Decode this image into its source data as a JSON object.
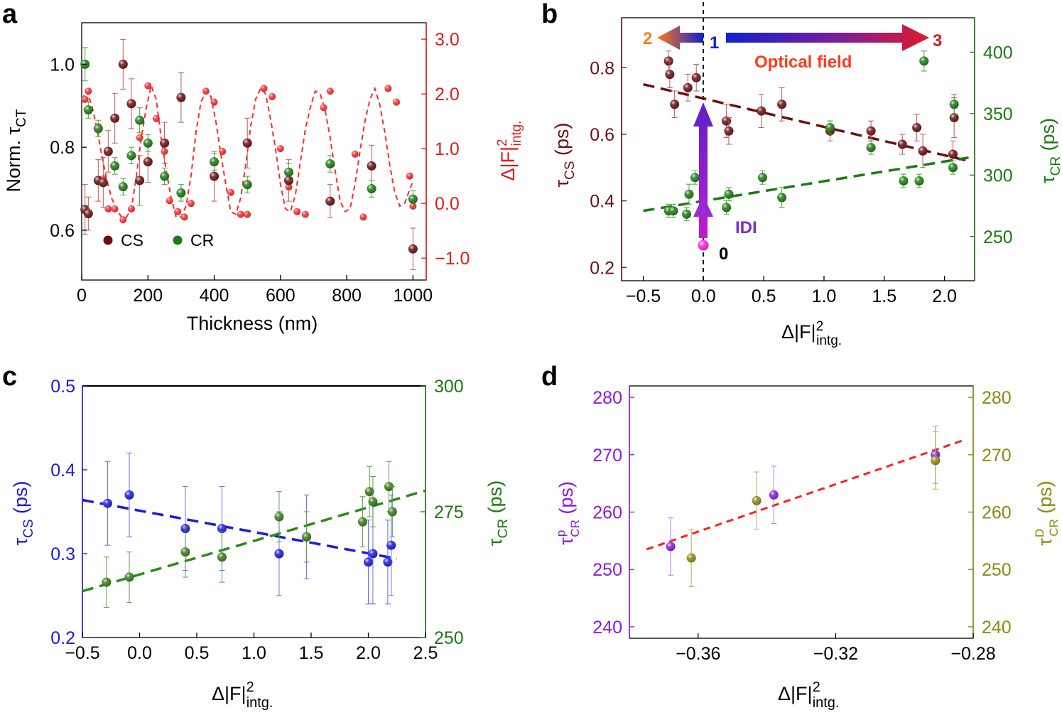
{
  "figure": {
    "panels": [
      {
        "id": "a",
        "letter": "a"
      },
      {
        "id": "b",
        "letter": "b"
      },
      {
        "id": "c",
        "letter": "c"
      },
      {
        "id": "d",
        "letter": "d"
      }
    ]
  },
  "chart_data": [
    {
      "panel": "a",
      "type": "scatter",
      "xlabel": "Thickness (nm)",
      "ylabel_left": "Norm. τ",
      "ylabel_left_sub": "CT",
      "ylabel_right": "Δ|F|",
      "ylabel_right_sup": "2",
      "ylabel_right_sub": "intg.",
      "xlim": [
        0,
        1040
      ],
      "ylim_left": [
        0.48,
        1.1
      ],
      "ylim_right": [
        -1.4,
        3.3
      ],
      "xticks": [
        0,
        200,
        400,
        600,
        800,
        1000
      ],
      "xtick_labels": [
        "0",
        "200",
        "400",
        "600",
        "800",
        "1000"
      ],
      "yticks_left": [
        0.6,
        0.8,
        1.0
      ],
      "ytick_labels_left": [
        "0.6",
        "0.8",
        "1.0"
      ],
      "yticks_right": [
        -1.0,
        0.0,
        1.0,
        2.0,
        3.0
      ],
      "ytick_labels_right": [
        "−1.0",
        "0.0",
        "1.0",
        "2.0",
        "3.0"
      ],
      "legend": [
        {
          "label": "CS",
          "color": "#6b0f0f"
        },
        {
          "label": "CR",
          "color": "#1c7a12"
        }
      ],
      "colors": {
        "cs": "#6b0f0f",
        "cr": "#1c7a12",
        "field": "#ff2a2a",
        "right_axis": "#e31a1a"
      },
      "series": [
        {
          "name": "CS",
          "axis": "left",
          "x": [
            10,
            20,
            50,
            65,
            80,
            100,
            125,
            150,
            175,
            200,
            250,
            300,
            400,
            500,
            625,
            750,
            875,
            1000
          ],
          "y": [
            0.65,
            0.64,
            0.72,
            0.715,
            0.79,
            0.87,
            1.0,
            0.905,
            0.72,
            0.765,
            0.81,
            0.92,
            0.73,
            0.81,
            0.72,
            0.67,
            0.755,
            0.555
          ],
          "err": [
            0.06,
            0.04,
            0.05,
            0.06,
            0.05,
            0.06,
            0.06,
            0.06,
            0.06,
            0.05,
            0.05,
            0.06,
            0.06,
            0.06,
            0.05,
            0.04,
            0.05,
            0.05
          ]
        },
        {
          "name": "CR",
          "axis": "left",
          "x": [
            10,
            20,
            50,
            100,
            125,
            150,
            175,
            200,
            250,
            300,
            400,
            500,
            625,
            750,
            875,
            1000
          ],
          "y": [
            1.0,
            0.89,
            0.845,
            0.755,
            0.705,
            0.78,
            0.865,
            0.81,
            0.73,
            0.69,
            0.765,
            0.71,
            0.74,
            0.76,
            0.7,
            0.675
          ],
          "err": [
            0.04,
            0.02,
            0.02,
            0.02,
            0.02,
            0.02,
            0.03,
            0.02,
            0.02,
            0.02,
            0.02,
            0.02,
            0.02,
            0.02,
            0.02,
            0.02
          ]
        },
        {
          "name": "field",
          "axis": "right",
          "style": "dashed",
          "x": [
            0,
            15,
            30,
            45,
            60,
            75,
            90,
            105,
            120,
            135,
            150,
            165,
            180,
            195,
            210,
            225,
            240,
            255,
            270,
            285,
            300,
            315,
            330,
            345,
            360,
            375,
            390,
            405,
            420,
            435,
            450,
            465,
            480,
            495,
            510,
            525,
            540,
            555,
            570,
            585,
            600,
            615,
            630,
            645,
            660,
            675,
            690,
            705,
            720,
            735,
            750,
            765,
            780,
            795,
            810,
            825,
            840,
            855,
            870,
            885,
            900,
            915,
            930,
            945,
            960,
            975,
            990,
            1000
          ],
          "y": [
            1.9,
            2.05,
            1.8,
            1.4,
            0.9,
            0.45,
            0.1,
            -0.1,
            -0.25,
            -0.25,
            -0.1,
            0.5,
            1.2,
            1.75,
            2.15,
            1.9,
            1.2,
            0.6,
            0.1,
            -0.25,
            -0.25,
            -0.05,
            0.5,
            1.3,
            1.85,
            2.05,
            1.95,
            1.5,
            0.9,
            0.35,
            -0.15,
            -0.2,
            0.1,
            0.7,
            1.4,
            1.9,
            2.1,
            2.0,
            1.55,
            1.0,
            0.35,
            -0.1,
            -0.15,
            0.15,
            0.75,
            1.35,
            1.75,
            2.05,
            2.0,
            1.7,
            1.2,
            0.6,
            0.05,
            -0.15,
            -0.1,
            0.35,
            0.95,
            1.5,
            1.9,
            2.1,
            1.8,
            1.3,
            0.7,
            0.2,
            -0.05,
            0.0,
            0.25,
            0.4
          ]
        },
        {
          "name": "field-points",
          "axis": "right",
          "x": [
            10,
            20,
            50,
            65,
            80,
            100,
            125,
            150,
            175,
            200,
            225,
            250,
            265,
            290,
            310,
            330,
            375,
            400,
            425,
            450,
            480,
            500,
            550,
            575,
            600,
            625,
            650,
            675,
            730,
            750,
            825,
            850,
            925,
            950,
            990,
            1000
          ],
          "y": [
            1.9,
            2.05,
            1.4,
            0.45,
            -0.1,
            -0.1,
            -0.3,
            -0.1,
            1.2,
            2.15,
            1.55,
            0.95,
            0.05,
            -0.15,
            -0.25,
            0.0,
            2.05,
            1.85,
            0.95,
            0.2,
            -0.2,
            -0.2,
            2.1,
            1.95,
            1.0,
            0.3,
            -0.15,
            -0.2,
            1.75,
            2.05,
            0.9,
            -0.25,
            2.1,
            1.85,
            0.5,
            -0.05
          ]
        }
      ]
    },
    {
      "panel": "b",
      "type": "scatter",
      "xlabel": "Δ|F|",
      "xlabel_sup": "2",
      "xlabel_sub": "intg.",
      "ylabel_left": "τ",
      "ylabel_left_sub": "CS",
      "ylabel_left_unit": " (ps)",
      "ylabel_right": "τ",
      "ylabel_right_sub": "CR",
      "ylabel_right_unit": " (ps)",
      "xlim": [
        -0.68,
        2.25
      ],
      "ylim_left": [
        0.16,
        0.95
      ],
      "ylim_right": [
        214,
        428
      ],
      "xticks": [
        -0.5,
        0.0,
        0.5,
        1.0,
        1.5,
        2.0
      ],
      "xtick_labels": [
        "−0.5",
        "0.0",
        "0.5",
        "1.0",
        "1.5",
        "2.0"
      ],
      "yticks_left": [
        0.2,
        0.4,
        0.6,
        0.8
      ],
      "ytick_labels_left": [
        "0.2",
        "0.4",
        "0.6",
        "0.8"
      ],
      "yticks_right": [
        250,
        300,
        350,
        400
      ],
      "ytick_labels_right": [
        "250",
        "300",
        "350",
        "400"
      ],
      "colors": {
        "cs": "#6b0f0f",
        "cr": "#1c7a12",
        "left_axis": "#6b0f0f",
        "right_axis": "#1c7a12"
      },
      "series": [
        {
          "name": "CS",
          "axis": "left",
          "x": [
            -0.29,
            -0.28,
            -0.24,
            -0.13,
            -0.06,
            0.19,
            0.21,
            0.48,
            0.65,
            1.05,
            1.39,
            1.65,
            1.77,
            1.82,
            2.07,
            2.08
          ],
          "y": [
            0.82,
            0.78,
            0.69,
            0.74,
            0.77,
            0.64,
            0.61,
            0.67,
            0.69,
            0.61,
            0.61,
            0.57,
            0.62,
            0.55,
            0.54,
            0.65
          ],
          "err": [
            0.03,
            0.04,
            0.04,
            0.04,
            0.04,
            0.05,
            0.04,
            0.05,
            0.05,
            0.03,
            0.03,
            0.03,
            0.04,
            0.05,
            0.04,
            0.06
          ]
        },
        {
          "name": "CR",
          "axis": "left-equivalent",
          "x": [
            -0.29,
            -0.25,
            -0.14,
            -0.12,
            -0.07,
            0.19,
            0.21,
            0.49,
            0.65,
            1.05,
            1.39,
            1.66,
            1.79,
            1.83,
            2.07,
            2.08
          ],
          "y": [
            0.37,
            0.37,
            0.36,
            0.42,
            0.47,
            0.38,
            0.42,
            0.47,
            0.41,
            0.62,
            0.56,
            0.46,
            0.46,
            0.82,
            0.5,
            0.69
          ],
          "err": [
            0.02,
            0.02,
            0.02,
            0.03,
            0.02,
            0.02,
            0.02,
            0.02,
            0.03,
            0.02,
            0.02,
            0.02,
            0.02,
            0.03,
            0.02,
            0.03
          ]
        },
        {
          "name": "CS fit",
          "style": "dashed",
          "x": [
            -0.5,
            2.2
          ],
          "y": [
            0.75,
            0.52
          ]
        },
        {
          "name": "CR fit",
          "style": "dashed",
          "x": [
            -0.5,
            2.2
          ],
          "y": [
            0.37,
            0.53
          ]
        },
        {
          "name": "IDI point",
          "x": [
            0.0
          ],
          "y": [
            0.23
          ],
          "color": "#ff22dd"
        }
      ],
      "annotations": {
        "optical_field": "Optical field",
        "idi": "IDI",
        "label_0": "0",
        "label_1": "1",
        "label_2": "2",
        "label_3": "3",
        "colors": {
          "optical": "#ff3b1a",
          "idi": "#7a2fd0",
          "two": "#ff7a1a",
          "three": "#e01818",
          "one": "#1024c8",
          "zero": "#000000"
        }
      }
    },
    {
      "panel": "c",
      "type": "scatter",
      "xlabel": "Δ|F|",
      "xlabel_sup": "2",
      "xlabel_sub": "intg.",
      "ylabel_left": "τ",
      "ylabel_left_sub": "CS",
      "ylabel_left_unit": " (ps)",
      "ylabel_right": "τ",
      "ylabel_right_sub": "CR",
      "ylabel_right_unit": " (ps)",
      "xlim": [
        -0.5,
        2.5
      ],
      "ylim_left": [
        0.2,
        0.5
      ],
      "ylim_right": [
        250,
        300
      ],
      "xticks": [
        -0.5,
        0.0,
        0.5,
        1.0,
        1.5,
        2.0,
        2.5
      ],
      "xtick_labels": [
        "−0.5",
        "0.0",
        "0.5",
        "1.0",
        "1.5",
        "2.0",
        "2.5"
      ],
      "yticks_left": [
        0.2,
        0.3,
        0.4,
        0.5
      ],
      "ytick_labels_left": [
        "0.2",
        "0.3",
        "0.4",
        "0.5"
      ],
      "yticks_right": [
        250,
        275,
        300
      ],
      "ytick_labels_right": [
        "250",
        "275",
        "300"
      ],
      "colors": {
        "cs": "#1a1ae0",
        "cr": "#3a7a1a",
        "left_axis": "#1a1ae0",
        "right_axis": "#1c7a12"
      },
      "series": [
        {
          "name": "CS",
          "axis": "left",
          "x": [
            -0.28,
            -0.09,
            0.4,
            0.72,
            1.22,
            1.46,
            2.0,
            2.04,
            2.17,
            2.2
          ],
          "y": [
            0.36,
            0.37,
            0.33,
            0.33,
            0.3,
            0.32,
            0.29,
            0.3,
            0.29,
            0.31
          ],
          "err": [
            0.05,
            0.05,
            0.05,
            0.05,
            0.05,
            0.05,
            0.05,
            0.06,
            0.05,
            0.06
          ]
        },
        {
          "name": "CR",
          "axis": "right",
          "x": [
            -0.29,
            -0.09,
            0.4,
            0.72,
            1.22,
            1.46,
            1.95,
            2.01,
            2.04,
            2.18,
            2.21
          ],
          "y": [
            261,
            262,
            267,
            266,
            274,
            270,
            273,
            279,
            277,
            280,
            275
          ],
          "err": [
            5,
            5,
            5,
            5,
            5,
            5,
            5,
            5,
            5,
            5,
            5
          ]
        },
        {
          "name": "CS fit",
          "style": "dashed",
          "x": [
            -0.5,
            2.25
          ],
          "y": [
            0.364,
            0.294
          ]
        },
        {
          "name": "CR fit",
          "style": "dashed",
          "axis": "right",
          "x": [
            -0.5,
            2.5
          ],
          "y": [
            259.2,
            279.2
          ]
        }
      ]
    },
    {
      "panel": "d",
      "type": "scatter",
      "xlabel": "Δ|F|",
      "xlabel_sup": "2",
      "xlabel_sub": "intg.",
      "ylabel_left": "τ",
      "ylabel_left_sup": "p",
      "ylabel_left_sub": "CR",
      "ylabel_left_unit": " (ps)",
      "ylabel_right": "τ",
      "ylabel_right_sup": "D",
      "ylabel_right_sub": "CR",
      "ylabel_right_unit": " (ps)",
      "xlim": [
        -0.38,
        -0.28
      ],
      "ylim_left": [
        238,
        282
      ],
      "ylim_right": [
        238,
        282
      ],
      "xticks": [
        -0.36,
        -0.32,
        -0.28
      ],
      "xtick_labels": [
        "−0.36",
        "−0.32",
        "−0.28"
      ],
      "yticks_left": [
        240,
        250,
        260,
        270,
        280
      ],
      "ytick_labels_left": [
        "240",
        "250",
        "260",
        "270",
        "280"
      ],
      "yticks_right": [
        240,
        250,
        260,
        270,
        280
      ],
      "ytick_labels_right": [
        "240",
        "250",
        "260",
        "270",
        "280"
      ],
      "colors": {
        "p": "#8a1ae0",
        "D": "#8a8a10",
        "fit": "#ff2020",
        "left_axis": "#8a1ae0",
        "right_axis": "#8a8a10"
      },
      "series": [
        {
          "name": "p",
          "axis": "left",
          "x": [
            -0.368,
            -0.338,
            -0.291
          ],
          "y": [
            254,
            263,
            270
          ],
          "err": [
            5,
            5,
            5
          ]
        },
        {
          "name": "D",
          "axis": "right",
          "x": [
            -0.362,
            -0.343,
            -0.291
          ],
          "y": [
            252,
            262,
            269
          ],
          "err": [
            5,
            5,
            5
          ]
        },
        {
          "name": "fit",
          "style": "dashed",
          "x": [
            -0.375,
            -0.283
          ],
          "y": [
            253.5,
            272.5
          ]
        }
      ]
    }
  ]
}
